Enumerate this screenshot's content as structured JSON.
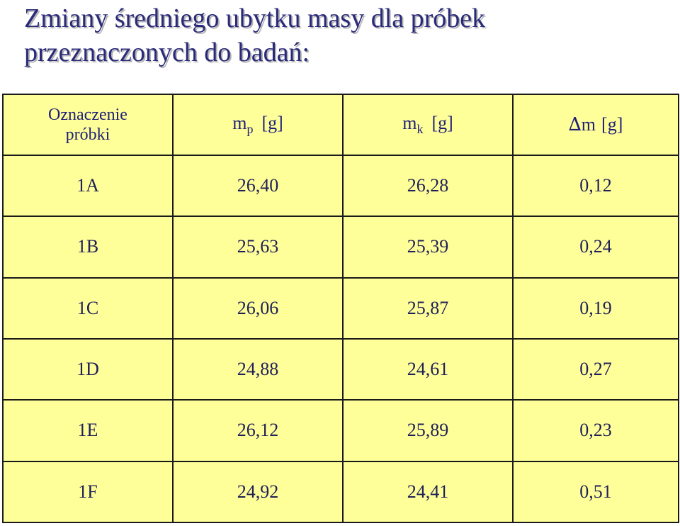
{
  "title": {
    "line1": "Zmiany średniego ubytku masy dla próbek",
    "line2": "przeznaczonych do badań:"
  },
  "table": {
    "headers": {
      "sample": {
        "line1": "Oznaczenie",
        "line2": "próbki"
      },
      "mp": {
        "symbol": "m",
        "sub": "p",
        "unit": "[g]"
      },
      "mk": {
        "symbol": "m",
        "sub": "k",
        "unit": "[g]"
      },
      "dm": {
        "delta": "∆",
        "symbol": "m",
        "unit": "[g]"
      }
    },
    "rows": [
      [
        "1A",
        "26,40",
        "26,28",
        "0,12"
      ],
      [
        "1B",
        "25,63",
        "25,39",
        "0,24"
      ],
      [
        "1C",
        "26,06",
        "25,87",
        "0,19"
      ],
      [
        "1D",
        "24,88",
        "24,61",
        "0,27"
      ],
      [
        "1E",
        "26,12",
        "25,89",
        "0,23"
      ],
      [
        "1F",
        "24,92",
        "24,41",
        "0,51"
      ]
    ]
  },
  "colors": {
    "cell_background": "#ffff99",
    "title_text": "#2a2a7a",
    "header_text": "#1f1f7a"
  }
}
